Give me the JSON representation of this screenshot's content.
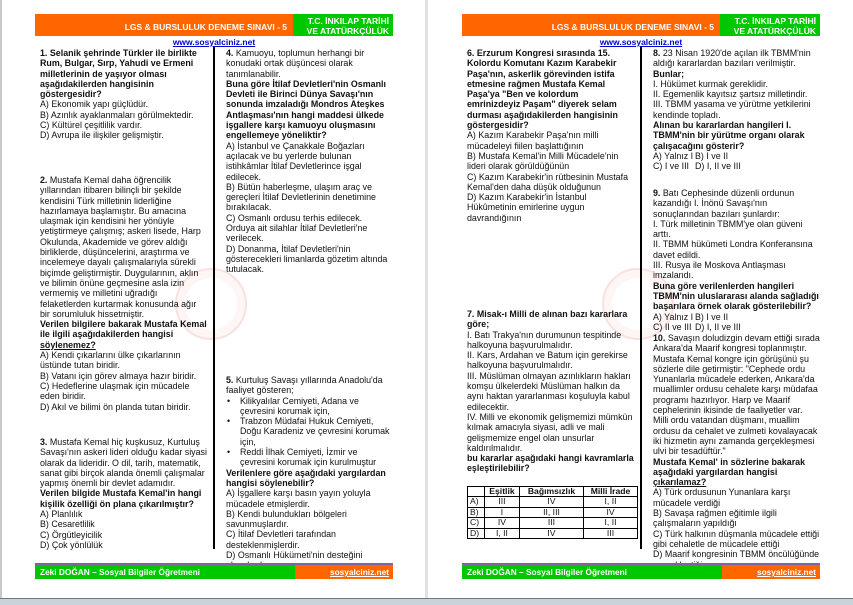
{
  "header": {
    "title": "LGS & BURSLULUK DENEME SINAVI - 5",
    "subject": "T.C. İNKILAP TARİHİ VE ATATÜRKÇÜLÜK"
  },
  "site": "www.sosyalciniz.net",
  "footer": {
    "author": "Zeki DOĞAN – Sosyal Bilgiler Öğretmeni",
    "site": "sosyalciniz.net"
  },
  "colors": {
    "header_orange": "#ff6600",
    "header_green": "#00c800",
    "footer_line": "#8064a2",
    "link": "#0000cc"
  },
  "watermark": "ministry-seal-icon",
  "pages": [
    {
      "columns": [
        [
          {
            "num": "1.",
            "blocks": [
              {
                "k": "b",
                "t": "Selanik şehrinde Türkler ile birlikte Rum, Bulgar, Sırp, Yahudi ve Ermeni milletlerinin de yaşıyor olması aşağıdakilerden hangisinin göstergesidir?"
              }
            ],
            "options": [
              "A) Ekonomik yapı güçlüdür.",
              "B) Azınlık ayaklanmaları görülmektedir.",
              "C) Kültürel çeşitlilik vardır.",
              "D) Avrupa ile ilişkiler gelişmiştir."
            ]
          },
          {
            "num": "2.",
            "blocks": [
              {
                "k": "n",
                "t": "Mustafa Kemal daha öğrencilik yıllarından itibaren bilinçli bir şekilde kendisini Türk milletinin liderliğine hazırlamaya başlamıştır. Bu amacına ulaşmak için kendisini her yönüyle yetiştirmeye çalışmış; askeri lisede, Harp Okulunda, Akademide ve görev aldığı birliklerde, düşüncelerini, araştırma ve incelemeye dayalı çalışmalarıyla sürekli biçimde geliştirmiştir. Duygularının, aklın ve bilimin önüne geçmesine asla izin vermemiş ve milletini uğradığı felaketlerden kurtarmak konusunda ağır bir sorumluluk hissetmiştir."
              },
              {
                "k": "b",
                "t": "Verilen bilgilere bakarak Mustafa Kemal ile ilgili aşağıdakilerden hangisi ",
                "u": "söylenemez?"
              }
            ],
            "options": [
              "A) Kendi çıkarlarını ülke çıkarlarının üstünde tutan biridir.",
              "B) Vatanı için görev almaya hazır biridir.",
              "C) Hedeflerine ulaşmak için mücadele eden biridir.",
              "D) Akıl ve bilimi ön planda tutan biridir."
            ]
          },
          {
            "num": "3.",
            "blocks": [
              {
                "k": "n",
                "t": "Mustafa Kemal hiç kuşkusuz, Kurtuluş Savaşı'nın askeri lideri olduğu kadar siyasi olarak da lideridir. O dil, tarih, matematik, sanat gibi birçok alanda önemli çalışmalar yapmış önemli bir devlet adamıdır."
              },
              {
                "k": "b",
                "t": "Verilen bilgide Mustafa Kemal'in hangi kişilik özelliği ön plana çıkarılmıştır?"
              }
            ],
            "options": [
              "A) Planlılık",
              "B) Cesaretlilik",
              "C) Örgütleyicilik",
              "D) Çok yönlülük"
            ]
          }
        ],
        [
          {
            "num": "4.",
            "blocks": [
              {
                "k": "n",
                "t": "Kamuoyu, toplumun herhangi bir konudaki ortak düşüncesi olarak tanımlanabilir."
              },
              {
                "k": "b",
                "t": "Buna göre İtilaf Devletleri'nin Osmanlı Devleti ile Birinci Dünya Savaşı'nın sonunda imzaladığı Mondros Ateşkes Antlaşması'nın hangi maddesi ülkede işgallere karşı kamuoyu oluşmasını engellemeye yöneliktir?"
              }
            ],
            "options": [
              "A) İstanbul ve Çanakkale Boğazları açılacak ve bu yerlerde bulunan istihkâmlar İtilaf Devletlerince işgal edilecek.",
              "B) Bütün haberleşme, ulaşım araç ve gereçleri İtilaf Devletlerinin denetimine bırakılacak.",
              "C) Osmanlı ordusu terhis edilecek. Orduya ait silahlar İtilaf Devletleri'ne verilecek.",
              "D) Donanma, İtilaf Devletleri'nin gösterecekleri limanlarda gözetim altında tutulacak."
            ]
          },
          {
            "num": "5.",
            "blocks": [
              {
                "k": "n",
                "t": "Kurtuluş Savaşı yıllarında Anadolu'da faaliyet gösteren;"
              },
              {
                "k": "bullet",
                "t": "Kilikyalılar Cemiyeti, Adana ve çevresini korumak için,"
              },
              {
                "k": "bullet",
                "t": "Trabzon Müdafai Hukuk Cemiyeti, Doğu Karadeniz ve çevresini korumak için,"
              },
              {
                "k": "bullet",
                "t": "Reddi İlhak Cemiyeti, İzmir ve çevresini korumak için kurulmuştur"
              },
              {
                "k": "b",
                "t": "Verilenlere göre aşağıdaki yargılardan hangisi söylenebilir?"
              }
            ],
            "options": [
              "A) İşgallere karşı basın yayın yoluyla mücadele etmişlerdir.",
              "B) Kendi bulundukları bölgeleri savunmuşlardır.",
              "C) İtilaf Devletleri tarafından desteklenmişlerdir.",
              "D) Osmanlı Hükümeti'nin desteğini almışlardır."
            ]
          }
        ]
      ]
    },
    {
      "columns": [
        [
          {
            "num": "6.",
            "blocks": [
              {
                "k": "b",
                "t": "Erzurum Kongresi sırasında 15. Kolordu Komutanı Kazım Karabekir Paşa'nın, askerlik görevinden istifa etmesine rağmen Mustafa Kemal Paşa'ya \"Ben ve kolordum emrinizdeyiz Paşam\"  diyerek selam durması aşağıdakilerden hangisinin göstergesidir?"
              }
            ],
            "options": [
              "A) Kazım Karabekir Paşa'nın milli mücadeleyi fiilen başlattığının",
              "B) Mustafa Kemal'in Milli Mücadele'nin lideri olarak görüldüğünün",
              "C) Kazım Karabekir'in rütbesinin Mustafa Kemal'den daha düşük olduğunun",
              "D) Kazım Karabekir'in İstanbul Hükûmetinin emirlerine uygun davrandığının"
            ]
          },
          {
            "num": "7.",
            "blocks": [
              {
                "k": "b",
                "t": "Misak-ı Milli de alınan bazı kararlara göre;"
              },
              {
                "k": "n",
                "t": "I. Batı Trakya'nın durumunun tespitinde halkoyuna başvurulmalıdır."
              },
              {
                "k": "n",
                "t": "II. Kars, Ardahan ve Batum için gerekirse halkoyuna başvurulmalıdır."
              },
              {
                "k": "n",
                "t": "III. Müslüman olmayan azınlıkların hakları komşu ülkelerdeki Müslüman halkın da aynı haktan yararlanması koşuluyla kabul edilecektir."
              },
              {
                "k": "n",
                "t": "IV. Milli ve ekonomik gelişmemizi mümkün kılmak amacıyla siyasi, adli ve mali gelişmemize engel olan unsurlar kaldırılmalıdır."
              },
              {
                "k": "b",
                "t": "bu kararlar aşağıdaki hangi kavramlarla eşleştirilebilir?"
              }
            ],
            "table": [
              [
                "",
                "Eşitlik",
                "Bağımsızlık",
                "Milli İrade"
              ],
              [
                "A)",
                "III",
                "IV",
                "I, II"
              ],
              [
                "B)",
                "I",
                "II, III",
                "IV"
              ],
              [
                "C)",
                "IV",
                "III",
                "I, II"
              ],
              [
                "D)",
                "I, II",
                "IV",
                "III"
              ]
            ]
          }
        ],
        [
          {
            "num": "8.",
            "blocks": [
              {
                "k": "n",
                "t": "23 Nisan 1920'de açılan ilk TBMM'nin aldığı kararlardan bazıları verilmiştir."
              },
              {
                "k": "b",
                "t": "Bunlar;"
              },
              {
                "k": "n",
                "t": "I. Hükümet kurmak gereklidir."
              },
              {
                "k": "n",
                "t": "II. Egemenlik kayıtsız şartsız milletindir."
              },
              {
                "k": "n",
                "t": "III. TBMM yasama ve yürütme yetkilerini kendinde topladı."
              },
              {
                "k": "b",
                "t": "Alınan bu kararlardan hangileri I. TBMM'nin bir yürütme organı olarak çalışacağını gösterir?"
              }
            ],
            "grid": true,
            "options": [
              "A) Yalnız I",
              "B) I ve II",
              "C) I ve III",
              "D) I, II ve III"
            ]
          },
          {
            "num": "9.",
            "blocks": [
              {
                "k": "n",
                "t": "Batı Cephesinde düzenli ordunun kazandığı I. İnönü Savaşı'nın sonuçlarından bazıları şunlardır:"
              },
              {
                "k": "n",
                "t": "I. Türk milletinin TBMM'ye olan güveni arttı."
              },
              {
                "k": "n",
                "t": "II. TBMM hükümeti Londra Konferansına davet edildi."
              },
              {
                "k": "n",
                "t": "III. Rusya ile Moskova Antlaşması imzalandı."
              },
              {
                "k": "b",
                "t": "Buna göre verilenlerden hangileri TBMM'nin uluslararası alanda sağladığı başarılara örnek olarak gösterilebilir?"
              }
            ],
            "grid": true,
            "options": [
              "A) Yalnız I",
              "B) I ve II",
              "C) II ve III",
              "D) I, II ve III"
            ]
          },
          {
            "num": "10.",
            "blocks": [
              {
                "k": "n",
                "t": "Savaşın doludizgin devam ettiği sırada Ankara'da Maarif kongresi toplanmıştır. Mustafa Kemal kongre için görüşünü şu sözlerle dile getirmiştir: \"Cephede ordu Yunanlarla mücadele ederken, Ankara'da muallimler ordusu cehalete karşı müdafaa programı hazırlıyor. Harp ve Maarif cephelerinin ikisinde de faaliyetler var. Milli ordu vatandan düşmanı, muallim ordusu da cehalet ve zulmeti kovalayacak iki hizmetin aynı zamanda gerçekleşmesi ulvi bir tesadüftür.\""
              },
              {
                "k": "b",
                "t": "Mustafa Kemal' in sözlerine bakarak aşağıdaki yargılardan hangisi ",
                "u": "çıkarılamaz?"
              }
            ],
            "options": [
              "A) Türk ordusunun Yunanlara karşı mücadele verdiği",
              "B) Savaşa rağmen eğitimle ilgili çalışmaların yapıldığı",
              "C) Türk halkının düşmanla mücadele ettiği gibi cehaletle de mücadele ettiği",
              "D) Maarif kongresinin TBMM öncülüğünde gerçekleştiği"
            ]
          }
        ]
      ]
    }
  ]
}
